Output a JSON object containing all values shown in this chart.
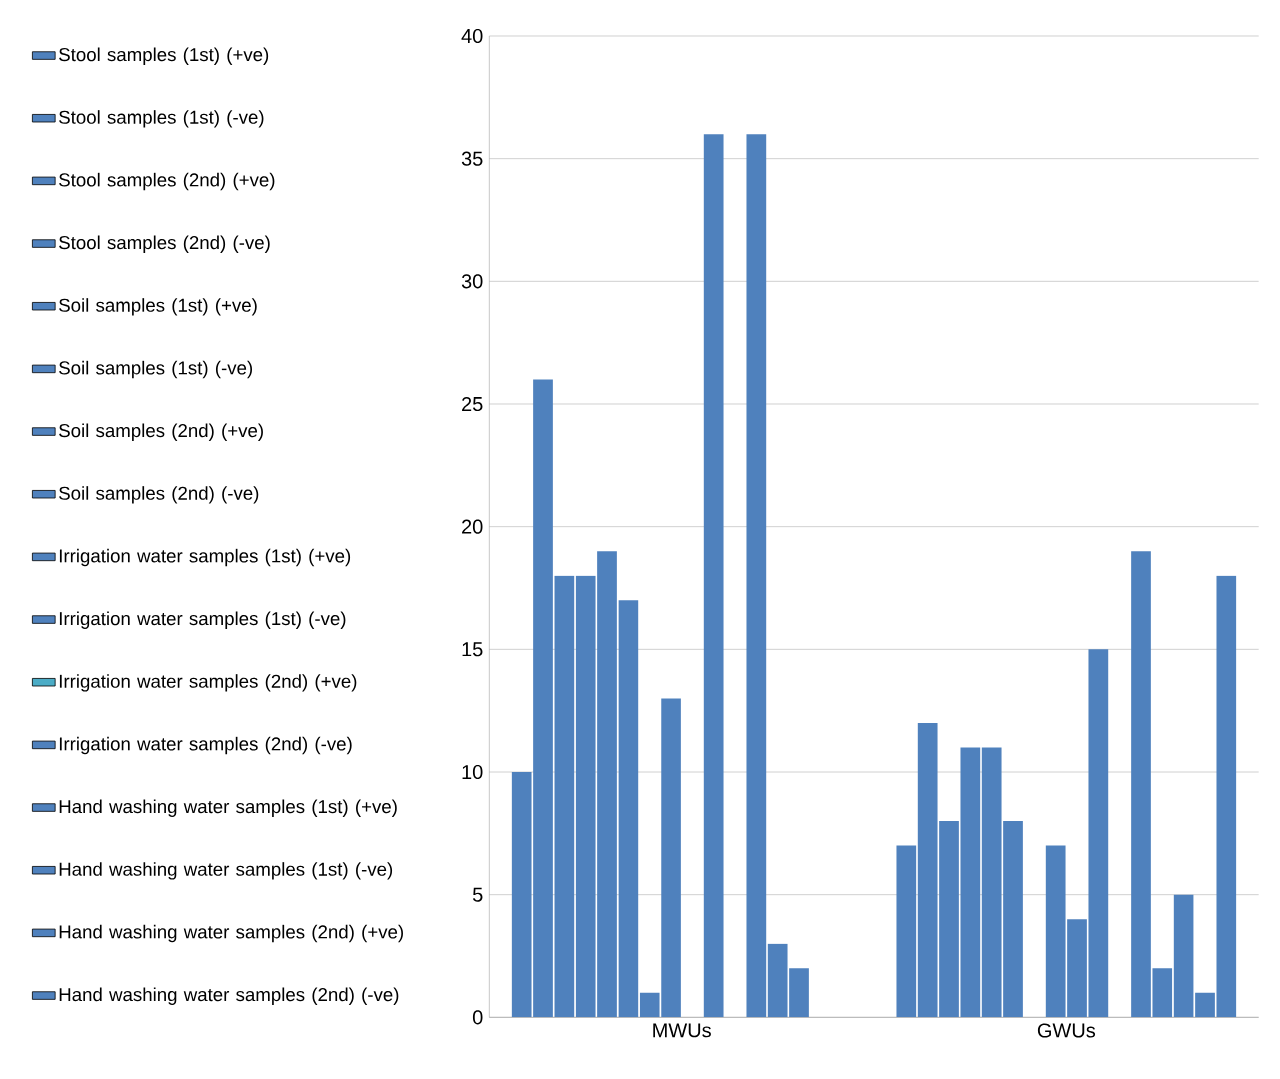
{
  "chart_data": {
    "type": "bar",
    "categories": [
      "MWUs",
      "GWUs"
    ],
    "ylim": [
      0,
      40
    ],
    "yticks": [
      0,
      5,
      10,
      15,
      20,
      25,
      30,
      35,
      40
    ],
    "grid": "y",
    "legend": "left",
    "series": [
      {
        "name": "Stool samples (1st) (+ve)",
        "color": "#4f81bd",
        "values": [
          10,
          7
        ]
      },
      {
        "name": "Stool samples (1st) (-ve)",
        "color": "#4f81bd",
        "values": [
          26,
          12
        ]
      },
      {
        "name": "Stool samples (2nd) (+ve)",
        "color": "#4f81bd",
        "values": [
          18,
          8
        ]
      },
      {
        "name": "Stool samples (2nd) (-ve)",
        "color": "#4f81bd",
        "values": [
          18,
          11
        ]
      },
      {
        "name": "Soil samples (1st) (+ve)",
        "color": "#4f81bd",
        "values": [
          19,
          11
        ]
      },
      {
        "name": "Soil samples (1st) (-ve)",
        "color": "#4f81bd",
        "values": [
          17,
          8
        ]
      },
      {
        "name": "Soil samples (2nd) (+ve)",
        "color": "#4f81bd",
        "values": [
          1,
          0
        ]
      },
      {
        "name": "Soil samples (2nd) (-ve)",
        "color": "#4f81bd",
        "values": [
          13,
          7
        ]
      },
      {
        "name": "Irrigation water samples (1st) (+ve)",
        "color": "#4f81bd",
        "values": [
          0,
          4
        ]
      },
      {
        "name": "Irrigation water samples (1st) (-ve)",
        "color": "#4f81bd",
        "values": [
          36,
          15
        ]
      },
      {
        "name": "Irrigation water samples (2nd) (+ve)",
        "color": "#4bacc6",
        "values": [
          0,
          0
        ]
      },
      {
        "name": "Irrigation water samples (2nd) (-ve)",
        "color": "#4f81bd",
        "values": [
          36,
          19
        ]
      },
      {
        "name": "Hand washing water samples (1st) (+ve)",
        "color": "#4f81bd",
        "values": [
          3,
          2
        ]
      },
      {
        "name": "Hand washing water samples (1st) (-ve)",
        "color": "#4f81bd",
        "values": [
          2,
          5
        ]
      },
      {
        "name": "Hand washing water samples (2nd) (+ve)",
        "color": "#4f81bd",
        "values": [
          0,
          1
        ]
      },
      {
        "name": "Hand washing water samples (2nd) (-ve)",
        "color": "#4f81bd",
        "values": [
          0,
          18
        ]
      }
    ]
  }
}
